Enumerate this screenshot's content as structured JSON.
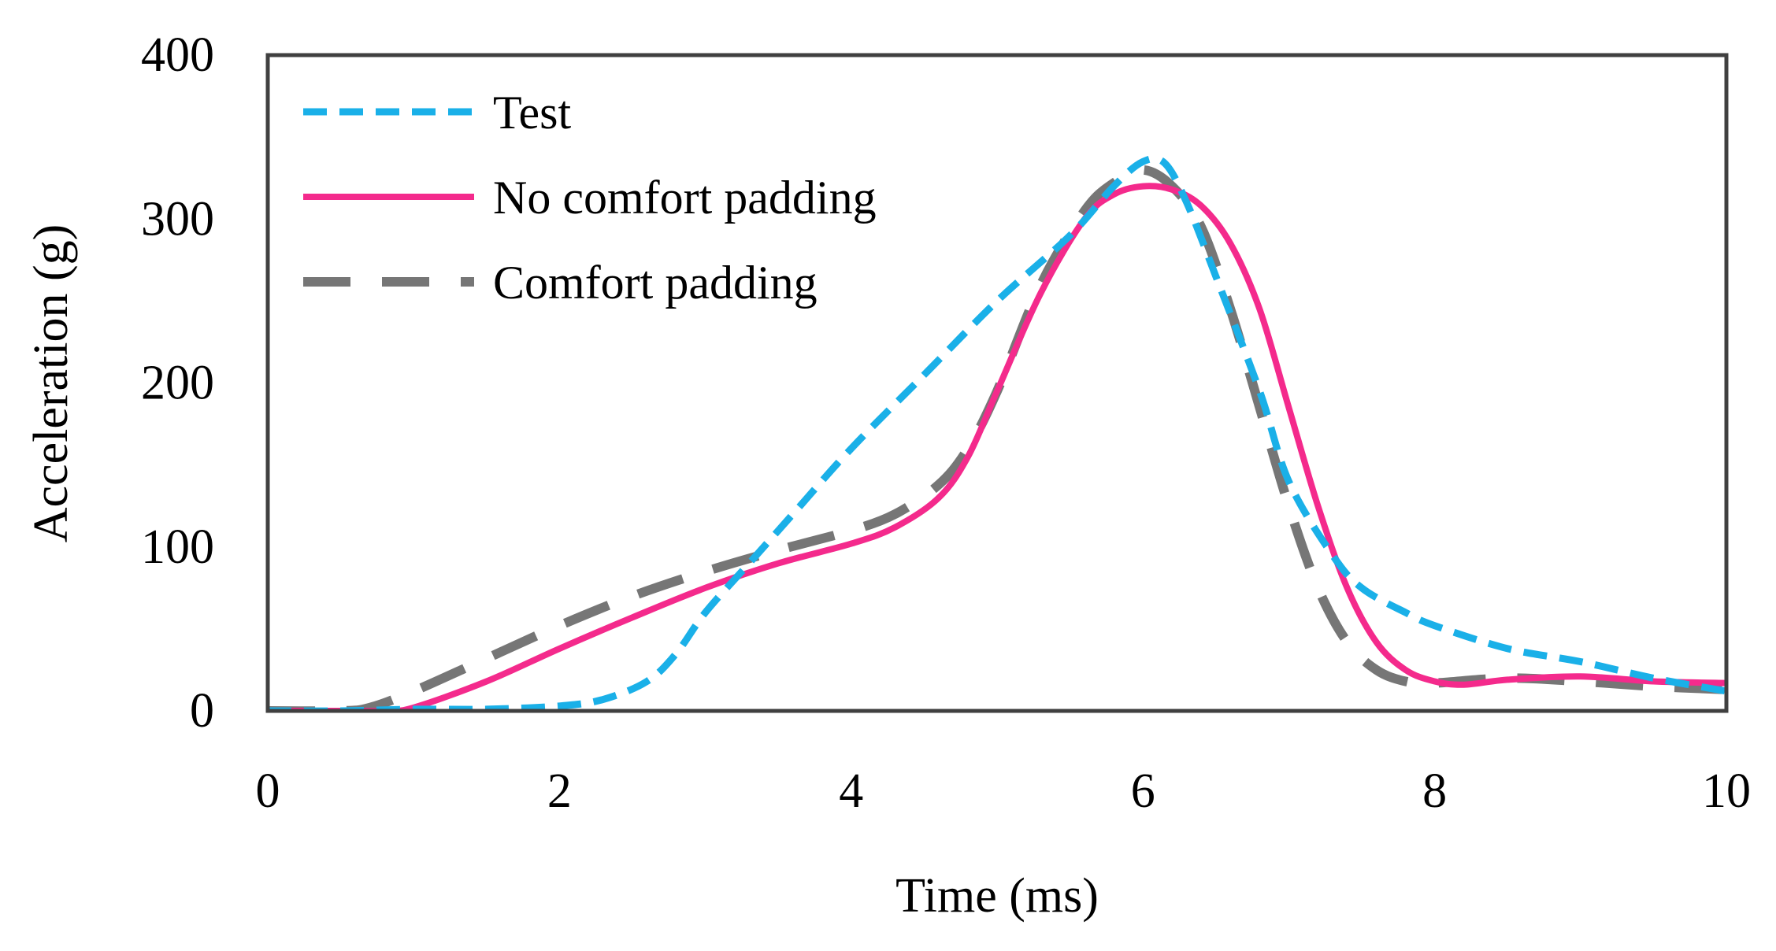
{
  "chart_data": {
    "type": "line",
    "title": "",
    "xlabel": "Time (ms)",
    "ylabel": "Acceleration (g)",
    "xlim": [
      0,
      10
    ],
    "ylim": [
      0,
      400
    ],
    "x_ticks": [
      0,
      2,
      4,
      6,
      8,
      10
    ],
    "y_ticks": [
      0,
      100,
      200,
      300,
      400
    ],
    "grid": false,
    "legend_position": "top-left",
    "series": [
      {
        "name": "Test",
        "color": "#1ab0e8",
        "style": "short-dash",
        "x": [
          0,
          0.5,
          1,
          1.5,
          2,
          2.3,
          2.6,
          2.8,
          3.0,
          3.3,
          3.6,
          4.0,
          4.5,
          5.0,
          5.5,
          5.8,
          6.0,
          6.15,
          6.3,
          6.5,
          6.8,
          7.0,
          7.3,
          7.5,
          7.8,
          8.0,
          8.5,
          9.0,
          9.5,
          10
        ],
        "y": [
          0,
          0,
          1,
          1,
          3,
          7,
          18,
          35,
          60,
          90,
          120,
          160,
          205,
          250,
          290,
          320,
          335,
          334,
          310,
          265,
          195,
          140,
          95,
          75,
          60,
          52,
          38,
          30,
          20,
          12
        ]
      },
      {
        "name": "No comfort padding",
        "color": "#f42a8c",
        "style": "solid",
        "x": [
          0,
          0.5,
          0.8,
          1.0,
          1.5,
          2.0,
          2.5,
          3.0,
          3.5,
          4.0,
          4.3,
          4.6,
          4.8,
          5.0,
          5.3,
          5.6,
          5.8,
          6.0,
          6.2,
          6.4,
          6.6,
          6.8,
          7.0,
          7.2,
          7.4,
          7.6,
          7.8,
          8.0,
          8.2,
          8.5,
          9.0,
          9.5,
          10
        ],
        "y": [
          0,
          0,
          0,
          2,
          18,
          38,
          57,
          75,
          90,
          102,
          112,
          130,
          155,
          195,
          255,
          300,
          315,
          320,
          318,
          308,
          285,
          245,
          185,
          125,
          75,
          42,
          25,
          18,
          16,
          19,
          21,
          18,
          17
        ]
      },
      {
        "name": "Comfort padding",
        "color": "#767676",
        "style": "long-dash",
        "x": [
          0,
          0.5,
          0.7,
          1.0,
          1.5,
          2.0,
          2.5,
          3.0,
          3.5,
          4.0,
          4.3,
          4.6,
          4.8,
          5.0,
          5.3,
          5.6,
          5.8,
          6.0,
          6.2,
          6.4,
          6.6,
          6.8,
          7.0,
          7.2,
          7.4,
          7.6,
          7.8,
          8.0,
          8.5,
          9.0,
          9.5,
          10
        ],
        "y": [
          0,
          0,
          2,
          12,
          32,
          52,
          70,
          85,
          98,
          110,
          120,
          138,
          160,
          195,
          260,
          305,
          322,
          330,
          320,
          295,
          245,
          185,
          125,
          75,
          42,
          25,
          18,
          17,
          20,
          18,
          15,
          13
        ]
      }
    ]
  }
}
